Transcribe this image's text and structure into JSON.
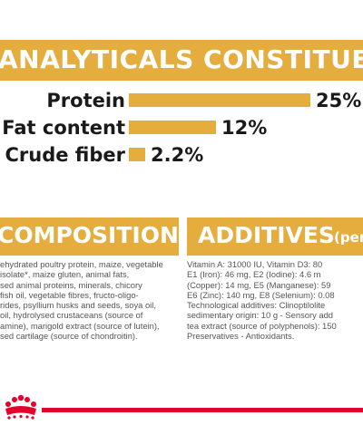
{
  "analytical": {
    "title": "ANALYTICALS CONSTITUENTS",
    "rows": [
      {
        "label": "Protein",
        "value": "25%",
        "percent": 25
      },
      {
        "label": "Fat content",
        "value": "12%",
        "percent": 12
      },
      {
        "label": "Crude fiber",
        "value": "2.2%",
        "percent": 2.2
      }
    ]
  },
  "composition": {
    "title": "COMPOSITION",
    "lines": [
      "ehydrated poultry protein, maize, vegetable",
      "isolate*, maize gluten, animal fats,",
      "sed animal proteins, minerals, chicory",
      "fish oil, vegetable fibres, fructo-oligo-",
      "rides, psyllium husks and seeds, soya oil,",
      "oil, hydrolysed crustaceans (source of",
      "amine), marigold extract (source of lutein),",
      "sed cartilage (source of chondroitin)."
    ]
  },
  "additives": {
    "title": "ADDITIVES",
    "title_suffix": "(per",
    "lines": [
      "Vitamin A: 31000 IU, Vitamin D3: 80",
      "E1 (Iron): 46 mg, E2 (Iodine): 4.6 m",
      "(Copper): 14 mg, E5 (Manganese): 59",
      "E6 (Zinc): 140 mg, E8 (Selenium): 0.08",
      "Technological additives: Clinoptilolite",
      "sedimentary origin: 10 g - Sensory add",
      "tea extract (source of polyphenols): 150",
      "Preservatives - Antioxidants."
    ]
  },
  "colors": {
    "accent": "#e5ad3d",
    "brand_red": "#e4002b"
  },
  "logo_icon": "royal-canin-crown-logo"
}
